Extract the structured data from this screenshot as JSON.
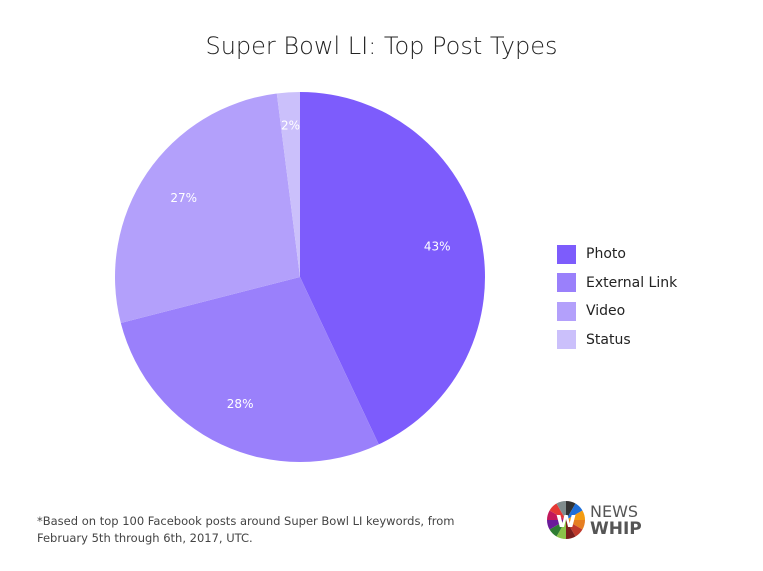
{
  "chart_data": {
    "type": "pie",
    "title": "Super Bowl LI: Top Post Types",
    "categories": [
      "Photo",
      "External Link",
      "Video",
      "Status"
    ],
    "values": [
      43,
      28,
      27,
      2
    ],
    "labels": [
      "43%",
      "28%",
      "27%",
      "2%"
    ],
    "colors": [
      "#7d5cfc",
      "#9a80fb",
      "#b3a0fb",
      "#cbc0fb"
    ],
    "legend_position": "right"
  },
  "footnote": "*Based on top 100 Facebook posts around Super Bowl LI keywords, from February 5th through 6th, 2017, UTC.",
  "logo": {
    "line1": "NEWS",
    "line2": "WHIP"
  }
}
